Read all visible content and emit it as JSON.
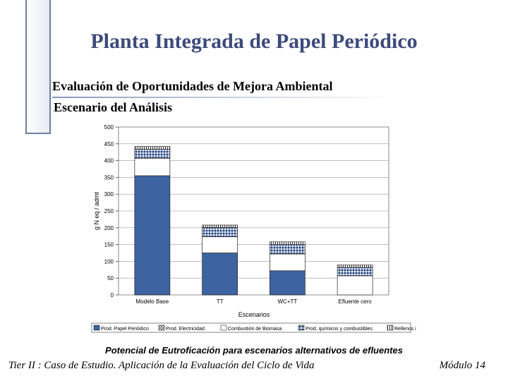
{
  "slide": {
    "title": "Planta Integrada de Papel Periódico",
    "subtitle_line1": "Evaluación de Oportunidades de Mejora Ambiental",
    "subtitle_line2": "Escenario del Análisis",
    "caption": "Potencial de Eutroficación para escenarios alternativos de efluentes",
    "footer_left": "Tier II : Caso de Estudio. Aplicación de la Evaluación del Ciclo de Vida",
    "footer_right": "Módulo 14"
  },
  "chart_data": {
    "type": "bar",
    "stacked": true,
    "title": "",
    "xlabel": "Escenarios",
    "ylabel": "g N eq / admt",
    "ylim": [
      0,
      500
    ],
    "yticks": [
      0,
      50,
      100,
      150,
      200,
      250,
      300,
      350,
      400,
      450,
      500
    ],
    "grid": true,
    "legend_position": "bottom",
    "categories": [
      "Modelo Base",
      "TT",
      "WC+TT",
      "Efluente cero"
    ],
    "series": [
      {
        "name": "Prod. Papel Periódico",
        "values": [
          355,
          125,
          72,
          0
        ],
        "color": "#3d63a0",
        "pattern": "solid"
      },
      {
        "name": "Prod. Electricidad",
        "values": [
          0,
          0,
          0,
          0
        ],
        "color": "#bbbbbb",
        "pattern": "checker"
      },
      {
        "name": "Combustión de Biomasa",
        "values": [
          52,
          48,
          50,
          57
        ],
        "color": "#ffffff",
        "pattern": "solid"
      },
      {
        "name": "Prod. químicos y combustibles",
        "values": [
          27,
          28,
          28,
          25
        ],
        "color": "#8fa7d0",
        "pattern": "dots"
      },
      {
        "name": "Rellenos ind.",
        "values": [
          8,
          7,
          8,
          7
        ],
        "color": "#ffffff",
        "pattern": "vlines"
      }
    ]
  }
}
